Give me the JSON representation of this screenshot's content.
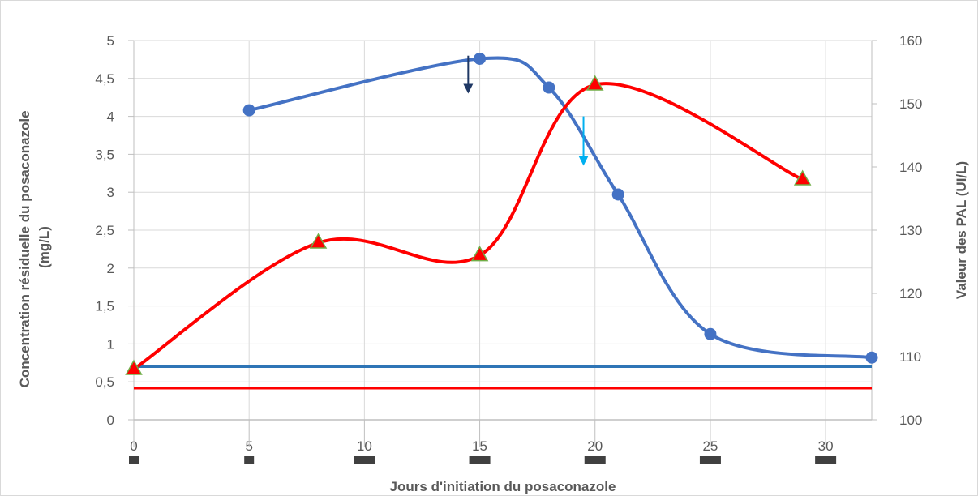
{
  "chart_data": {
    "type": "line",
    "xlabel": "Jours d'initiation du posaconazole",
    "ylabel_left": "Concentration résiduelle du posaconazole (mg/L)",
    "ylabel_right": "Valeur des PAL (UI/L)",
    "xlim": [
      0,
      32
    ],
    "x_ticks": [
      "0",
      "5",
      "10",
      "15",
      "20",
      "25",
      "30"
    ],
    "ylim_left": [
      0,
      5
    ],
    "y_ticks_left": [
      "0",
      "0,5",
      "1",
      "1,5",
      "2",
      "2,5",
      "3",
      "3,5",
      "4",
      "4,5",
      "5"
    ],
    "ylim_right": [
      100,
      160
    ],
    "y_ticks_right": [
      "100",
      "110",
      "120",
      "130",
      "140",
      "150",
      "160"
    ],
    "grid": true,
    "legend": "none",
    "series": [
      {
        "axis": "left",
        "marker": "circle",
        "color": "#4472c4",
        "x": [
          5,
          15,
          18,
          21,
          25,
          32
        ],
        "y": [
          4.08,
          4.76,
          4.38,
          2.97,
          1.13,
          0.82
        ]
      },
      {
        "axis": "right",
        "marker": "triangle",
        "color": "#ff0000",
        "x": [
          0,
          8,
          15,
          20,
          29
        ],
        "y": [
          108,
          128,
          126,
          153,
          138
        ]
      }
    ],
    "reference_lines": [
      {
        "axis": "left",
        "y": 0.7,
        "color": "#2e75b6"
      },
      {
        "axis": "right",
        "y": 105,
        "color": "#ff0000"
      }
    ],
    "annotations": [
      {
        "type": "arrow-down",
        "x": 14.5,
        "y": 4.8,
        "y_end": 4.3,
        "color": "#1f3864"
      },
      {
        "type": "arrow-down",
        "x": 19.5,
        "y": 4.0,
        "y_end": 3.35,
        "color": "#00b0f0"
      }
    ],
    "x_markers": [
      0,
      5,
      10,
      15,
      20,
      25,
      30
    ]
  }
}
